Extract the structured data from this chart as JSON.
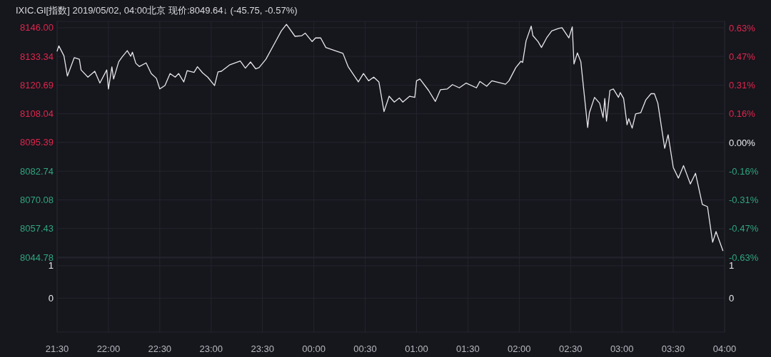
{
  "chart_data": [
    {
      "type": "line",
      "title": "IXIC.GI[指数]  2019/05/02, 04:00北京 现价:8049.64↓ (-45.75, -0.57%)",
      "x": [
        "2019-05-01T21:30",
        "2019-05-01T21:31",
        "2019-05-01T21:34",
        "2019-05-01T21:36",
        "2019-05-01T21:40",
        "2019-05-01T21:43",
        "2019-05-01T21:44",
        "2019-05-01T21:48",
        "2019-05-01T21:52",
        "2019-05-01T21:55",
        "2019-05-01T21:59",
        "2019-05-01T22:00",
        "2019-05-01T22:02",
        "2019-05-01T22:03",
        "2019-05-01T22:06",
        "2019-05-01T22:08",
        "2019-05-01T22:11",
        "2019-05-01T22:13",
        "2019-05-01T22:14",
        "2019-05-01T22:16",
        "2019-05-01T22:18",
        "2019-05-01T22:22",
        "2019-05-01T22:25",
        "2019-05-01T22:28",
        "2019-05-01T22:30",
        "2019-05-01T22:33",
        "2019-05-01T22:36",
        "2019-05-01T22:39",
        "2019-05-01T22:41",
        "2019-05-01T22:44",
        "2019-05-01T22:46",
        "2019-05-01T22:50",
        "2019-05-01T22:52",
        "2019-05-01T22:55",
        "2019-05-01T22:58",
        "2019-05-01T23:02",
        "2019-05-01T23:04",
        "2019-05-01T23:06",
        "2019-05-01T23:11",
        "2019-05-01T23:17",
        "2019-05-01T23:20",
        "2019-05-01T23:23",
        "2019-05-01T23:26",
        "2019-05-01T23:28",
        "2019-05-01T23:32",
        "2019-05-01T23:38",
        "2019-05-01T23:41",
        "2019-05-01T23:44",
        "2019-05-01T23:49",
        "2019-05-01T23:53",
        "2019-05-01T23:55",
        "2019-05-01T23:59",
        "2019-05-02T00:01",
        "2019-05-02T00:04",
        "2019-05-02T00:07",
        "2019-05-02T00:13",
        "2019-05-02T00:17",
        "2019-05-02T00:20",
        "2019-05-02T00:26",
        "2019-05-02T00:29",
        "2019-05-02T00:32",
        "2019-05-02T00:35",
        "2019-05-02T00:38",
        "2019-05-02T00:41",
        "2019-05-02T00:44",
        "2019-05-02T00:47",
        "2019-05-02T00:50",
        "2019-05-02T00:52",
        "2019-05-02T00:56",
        "2019-05-02T00:59",
        "2019-05-02T01:00",
        "2019-05-02T01:02",
        "2019-05-02T01:07",
        "2019-05-02T01:11",
        "2019-05-02T01:14",
        "2019-05-02T01:18",
        "2019-05-02T01:21",
        "2019-05-02T01:25",
        "2019-05-02T01:29",
        "2019-05-02T01:35",
        "2019-05-02T01:37",
        "2019-05-02T01:41",
        "2019-05-02T01:44",
        "2019-05-02T01:52",
        "2019-05-02T01:54",
        "2019-05-02T01:58",
        "2019-05-02T02:01",
        "2019-05-02T02:02",
        "2019-05-02T02:04",
        "2019-05-02T02:07",
        "2019-05-02T02:08",
        "2019-05-02T02:11",
        "2019-05-02T02:13",
        "2019-05-02T02:16",
        "2019-05-02T02:19",
        "2019-05-02T02:23",
        "2019-05-02T02:25",
        "2019-05-02T02:29",
        "2019-05-02T02:31",
        "2019-05-02T02:32",
        "2019-05-02T02:34",
        "2019-05-02T02:36",
        "2019-05-02T02:40",
        "2019-05-02T02:41",
        "2019-05-02T02:44",
        "2019-05-02T02:47",
        "2019-05-02T02:49",
        "2019-05-02T02:50",
        "2019-05-02T02:51",
        "2019-05-02T02:53",
        "2019-05-02T02:55",
        "2019-05-02T02:58",
        "2019-05-02T02:59",
        "2019-05-02T03:01",
        "2019-05-02T03:03",
        "2019-05-02T03:04",
        "2019-05-02T03:06",
        "2019-05-02T03:08",
        "2019-05-02T03:11",
        "2019-05-02T03:14",
        "2019-05-02T03:17",
        "2019-05-02T03:19",
        "2019-05-02T03:21",
        "2019-05-02T03:25",
        "2019-05-02T03:27",
        "2019-05-02T03:30",
        "2019-05-02T03:33",
        "2019-05-02T03:36",
        "2019-05-02T03:40",
        "2019-05-02T03:43",
        "2019-05-02T03:47",
        "2019-05-02T03:50",
        "2019-05-02T03:53",
        "2019-05-02T03:55",
        "2019-05-02T03:59"
      ],
      "series": [
        {
          "color": "#e6e6ea",
          "values": [
            8135.7,
            8138.0,
            8133.6,
            8124.7,
            8132.8,
            8132.1,
            8127.4,
            8124.2,
            8126.8,
            8121.6,
            8127.4,
            8119.0,
            8128.7,
            8123.4,
            8131.0,
            8133.1,
            8135.9,
            8133.4,
            8135.2,
            8130.3,
            8128.9,
            8130.5,
            8125.8,
            8123.7,
            8119.0,
            8120.5,
            8125.8,
            8124.2,
            8125.8,
            8122.1,
            8127.1,
            8126.3,
            8128.8,
            8126.1,
            8124.2,
            8120.5,
            8126.5,
            8126.8,
            8129.7,
            8131.3,
            8128.2,
            8130.9,
            8127.9,
            8128.4,
            8132.1,
            8140.4,
            8144.6,
            8147.5,
            8142.2,
            8142.5,
            8143.6,
            8139.9,
            8141.5,
            8141.5,
            8137.3,
            8135.7,
            8134.7,
            8128.9,
            8122.1,
            8125.8,
            8122.6,
            8124.2,
            8122.1,
            8109.0,
            8115.8,
            8113.2,
            8115.0,
            8113.2,
            8115.8,
            8115.3,
            8122.6,
            8123.4,
            8118.4,
            8113.5,
            8118.7,
            8119.0,
            8120.9,
            8119.5,
            8121.6,
            8119.5,
            8122.3,
            8120.2,
            8122.6,
            8121.1,
            8122.6,
            8128.4,
            8131.2,
            8130.7,
            8140.2,
            8146.7,
            8142.5,
            8139.9,
            8137.3,
            8141.5,
            8144.6,
            8145.7,
            8146.0,
            8141.5,
            8146.4,
            8130.0,
            8134.9,
            8131.0,
            8102.0,
            8108.5,
            8115.3,
            8112.7,
            8106.4,
            8114.8,
            8104.8,
            8118.4,
            8119.0,
            8115.3,
            8117.4,
            8114.8,
            8103.2,
            8105.9,
            8101.7,
            8108.0,
            8108.5,
            8114.2,
            8116.9,
            8116.9,
            8112.7,
            8092.8,
            8098.8,
            8084.4,
            8079.7,
            8085.2,
            8077.1,
            8081.8,
            8068.1,
            8067.1,
            8051.4,
            8056.1,
            8047.7
          ]
        }
      ],
      "xlim": [
        "2019-05-01T21:30",
        "2019-05-02T04:00"
      ],
      "xticks": [
        {
          "value": "2019-05-01T21:30",
          "label": null
        },
        {
          "value": "2019-05-01T22:00",
          "label": null
        },
        {
          "value": "2019-05-01T22:30",
          "label": null
        },
        {
          "value": "2019-05-01T23:00",
          "label": null
        },
        {
          "value": "2019-05-01T23:30",
          "label": null
        },
        {
          "value": "2019-05-02T00:00",
          "label": null
        },
        {
          "value": "2019-05-02T00:30",
          "label": null
        },
        {
          "value": "2019-05-02T01:00",
          "label": null
        },
        {
          "value": "2019-05-02T01:30",
          "label": null
        },
        {
          "value": "2019-05-02T02:00",
          "label": null
        },
        {
          "value": "2019-05-02T02:30",
          "label": null
        },
        {
          "value": "2019-05-02T03:00",
          "label": null
        },
        {
          "value": "2019-05-02T03:30",
          "label": null
        },
        {
          "value": "2019-05-02T04:00",
          "label": null
        }
      ],
      "tick_labels": "y",
      "ylim": [
        8044.78,
        8148.8
      ],
      "yticks": [
        {
          "value": 8146,
          "label": "8146.00"
        },
        8133.34,
        8120.69,
        8108.04,
        8095.39,
        8082.74,
        8070.08,
        8057.43,
        8044.78
      ],
      "y2lim": [
        -0.625,
        0.66
      ],
      "y2ticks": [
        {
          "value": 0.625,
          "label": "0.63%"
        },
        {
          "value": 0.469,
          "label": "0.47%"
        },
        {
          "value": 0.312,
          "label": "0.31%"
        },
        {
          "value": 0.156,
          "label": "0.16%"
        },
        {
          "value": 0,
          "label": "0.00%"
        },
        {
          "value": -0.156,
          "label": "-0.16%"
        },
        {
          "value": -0.312,
          "label": "-0.31%"
        },
        {
          "value": -0.469,
          "label": "-0.47%"
        },
        {
          "value": -0.625,
          "label": "-0.63%"
        }
      ],
      "grid": true,
      "marker": "none",
      "line_style": "solid"
    },
    {
      "type": "line",
      "xlim": [
        "2019-05-01T21:30",
        "2019-05-02T04:00"
      ],
      "xticks": [
        {
          "value": "2019-05-01T21:30",
          "label": "21:30"
        },
        {
          "value": "2019-05-01T22:00",
          "label": "22:00"
        },
        {
          "value": "2019-05-01T22:30",
          "label": "22:30"
        },
        {
          "value": "2019-05-01T23:00",
          "label": "23:00"
        },
        {
          "value": "2019-05-01T23:30",
          "label": "23:30"
        },
        {
          "value": "2019-05-02T00:00",
          "label": "00:00"
        },
        {
          "value": "2019-05-02T00:30",
          "label": "00:30"
        },
        {
          "value": "2019-05-02T01:00",
          "label": "01:00"
        },
        {
          "value": "2019-05-02T01:30",
          "label": "01:30"
        },
        {
          "value": "2019-05-02T02:00",
          "label": "02:00"
        },
        {
          "value": "2019-05-02T02:30",
          "label": "02:30"
        },
        {
          "value": "2019-05-02T03:00",
          "label": "03:00"
        },
        {
          "value": "2019-05-02T03:30",
          "label": "03:30"
        },
        {
          "value": "2019-05-02T04:00",
          "label": "04:00"
        }
      ],
      "ylim": [
        -1.05,
        1.24
      ],
      "yticks": [
        1,
        0
      ],
      "y2lim": [
        -1.05,
        1.24
      ],
      "y2ticks": [
        1,
        0
      ],
      "grid": true
    }
  ]
}
